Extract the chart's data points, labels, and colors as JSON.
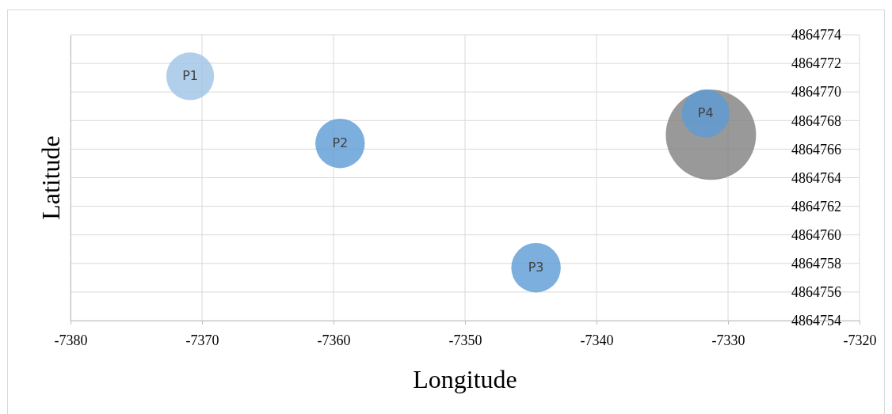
{
  "chart_data": {
    "type": "bubble",
    "xlabel": "Longitude",
    "ylabel": "Latitude",
    "xlim": [
      -7380,
      -7320
    ],
    "xticks": [
      -7380,
      -7370,
      -7360,
      -7350,
      -7340,
      -7330,
      -7320
    ],
    "ylim": [
      4864754,
      4864774
    ],
    "yticks": [
      4864754,
      4864756,
      4864758,
      4864760,
      4864762,
      4864764,
      4864766,
      4864768,
      4864770,
      4864772,
      4864774
    ],
    "grid": true,
    "series": [
      {
        "color": "#7f7f7f",
        "x": [
          -7331.3
        ],
        "values": [
          4864767.0
        ],
        "sizes": [
          1
        ]
      },
      {
        "color": "#9dc3e6",
        "x": [
          -7370.9
        ],
        "values": [
          4864771.1
        ],
        "sizes": [
          0.28
        ]
      },
      {
        "color": "#5b9bd5",
        "x": [
          -7359.5,
          -7344.6,
          -7331.7
        ],
        "values": [
          4864766.4,
          4864757.7,
          4864768.5
        ],
        "sizes": [
          0.3,
          0.3,
          0.28
        ]
      }
    ],
    "annotations": [
      {
        "text": "P1",
        "x": -7370.9,
        "y": 4864771.1
      },
      {
        "text": "P2",
        "x": -7359.5,
        "y": 4864766.4
      },
      {
        "text": "P3",
        "x": -7344.6,
        "y": 4864757.7
      },
      {
        "text": "P4",
        "x": -7331.7,
        "y": 4864768.5
      }
    ]
  }
}
